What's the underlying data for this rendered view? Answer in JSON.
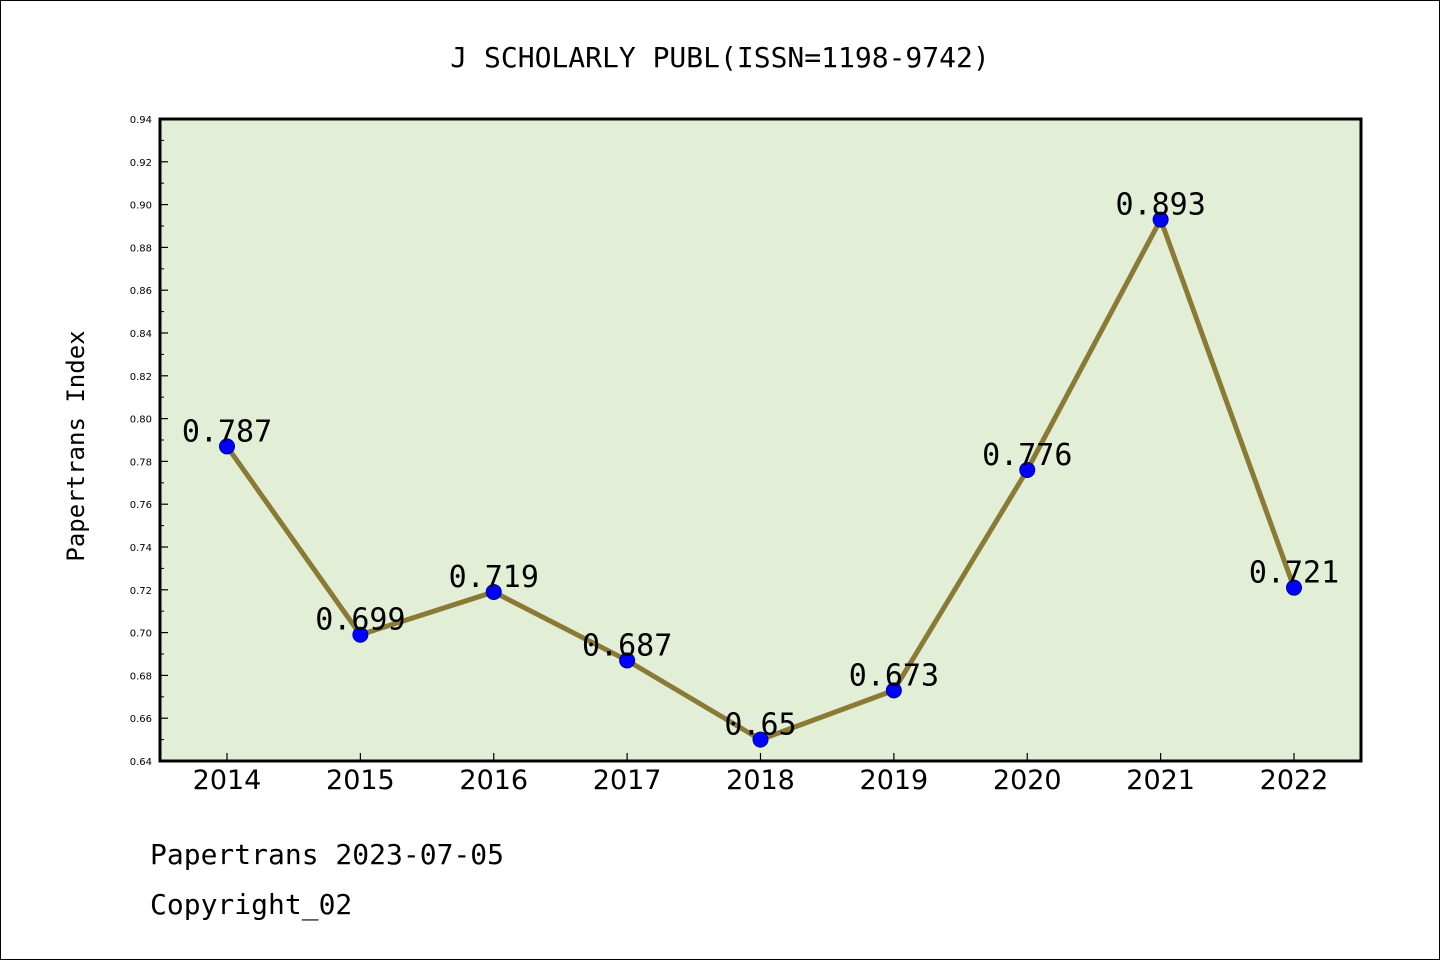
{
  "chart_data": {
    "type": "line",
    "title": "J SCHOLARLY PUBL(ISSN=1198-9742)",
    "xlabel": "",
    "ylabel": "Papertrans Index",
    "categories": [
      "2014",
      "2015",
      "2016",
      "2017",
      "2018",
      "2019",
      "2020",
      "2021",
      "2022"
    ],
    "series": [
      {
        "values": [
          0.787,
          0.699,
          0.719,
          0.687,
          0.65,
          0.673,
          0.776,
          0.893,
          0.721
        ]
      }
    ],
    "data_labels": [
      "0.787",
      "0.699",
      "0.719",
      "0.687",
      "0.65",
      "0.673",
      "0.776",
      "0.893",
      "0.721"
    ],
    "ylim": [
      0.64,
      0.94
    ],
    "yticks": [
      "0.64",
      "0.66",
      "0.68",
      "0.70",
      "0.72",
      "0.74",
      "0.76",
      "0.78",
      "0.80",
      "0.82",
      "0.84",
      "0.86",
      "0.88",
      "0.90",
      "0.92",
      "0.94"
    ],
    "grid": false,
    "legend": "none",
    "colors": {
      "plot_background": "#e2efd6",
      "line": "#8a7a35",
      "marker": "#0000ff"
    }
  },
  "footer": {
    "source": "Papertrans 2023-07-05",
    "copyright": "Copyright_02"
  }
}
